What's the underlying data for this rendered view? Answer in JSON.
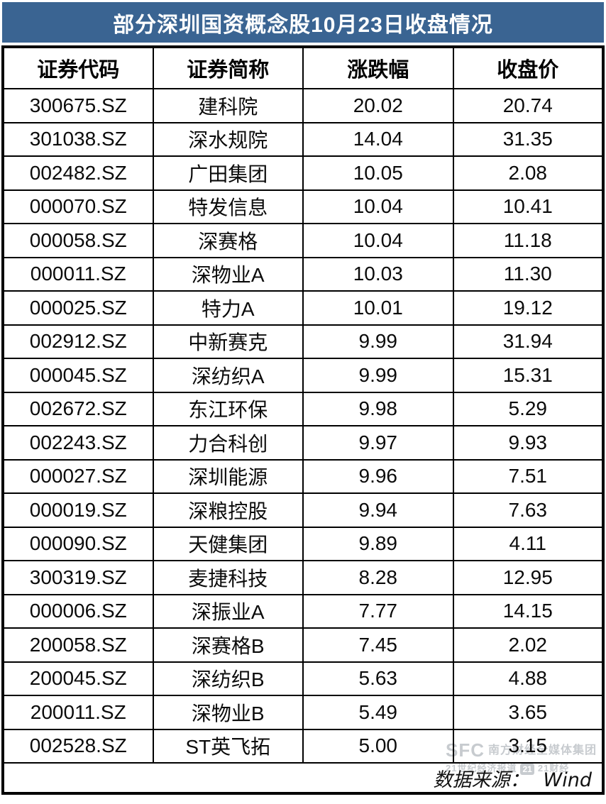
{
  "title": "部分深圳国资概念股10月23日收盘情况",
  "colors": {
    "title_bg": "#3A6492",
    "title_text": "#FFFFFF",
    "table_border": "#000000",
    "body_text": "#0B0B0B",
    "watermark": "#9BA1A8"
  },
  "table": {
    "headers": [
      "证券代码",
      "证券简称",
      "涨跌幅",
      "收盘价"
    ],
    "rows": [
      {
        "code": "300675.SZ",
        "name": "建科院",
        "change": "20.02",
        "close": "20.74"
      },
      {
        "code": "301038.SZ",
        "name": "深水规院",
        "change": "14.04",
        "close": "31.35"
      },
      {
        "code": "002482.SZ",
        "name": "广田集团",
        "change": "10.05",
        "close": "2.08"
      },
      {
        "code": "000070.SZ",
        "name": "特发信息",
        "change": "10.04",
        "close": "10.41"
      },
      {
        "code": "000058.SZ",
        "name": "深赛格",
        "change": "10.04",
        "close": "11.18"
      },
      {
        "code": "000011.SZ",
        "name": "深物业A",
        "change": "10.03",
        "close": "11.30"
      },
      {
        "code": "000025.SZ",
        "name": "特力A",
        "change": "10.01",
        "close": "19.12"
      },
      {
        "code": "002912.SZ",
        "name": "中新赛克",
        "change": "9.99",
        "close": "31.94"
      },
      {
        "code": "000045.SZ",
        "name": "深纺织A",
        "change": "9.99",
        "close": "15.31"
      },
      {
        "code": "002672.SZ",
        "name": "东江环保",
        "change": "9.98",
        "close": "5.29"
      },
      {
        "code": "002243.SZ",
        "name": "力合科创",
        "change": "9.97",
        "close": "9.93"
      },
      {
        "code": "000027.SZ",
        "name": "深圳能源",
        "change": "9.96",
        "close": "7.51"
      },
      {
        "code": "000019.SZ",
        "name": "深粮控股",
        "change": "9.94",
        "close": "7.63"
      },
      {
        "code": "000090.SZ",
        "name": "天健集团",
        "change": "9.89",
        "close": "4.11"
      },
      {
        "code": "300319.SZ",
        "name": "麦捷科技",
        "change": "8.28",
        "close": "12.95"
      },
      {
        "code": "000006.SZ",
        "name": "深振业A",
        "change": "7.77",
        "close": "14.15"
      },
      {
        "code": "200058.SZ",
        "name": "深赛格B",
        "change": "7.45",
        "close": "2.02"
      },
      {
        "code": "200045.SZ",
        "name": "深纺织B",
        "change": "5.63",
        "close": "4.88"
      },
      {
        "code": "200011.SZ",
        "name": "深物业B",
        "change": "5.49",
        "close": "3.65"
      },
      {
        "code": "002528.SZ",
        "name": "ST英飞拓",
        "change": "5.00",
        "close": "3.15"
      }
    ]
  },
  "footer": {
    "source_label": "数据来源：",
    "source_value": "Wind"
  },
  "watermark": {
    "sfc": "SFC",
    "org": "南方财经全媒体集团",
    "paper": "21世纪经济报道",
    "badge": "21",
    "app": "21财经"
  },
  "chart_data": {
    "type": "table",
    "title": "部分深圳国资概念股10月23日收盘情况",
    "columns": [
      "证券代码",
      "证券简称",
      "涨跌幅",
      "收盘价"
    ],
    "rows": [
      [
        "300675.SZ",
        "建科院",
        20.02,
        20.74
      ],
      [
        "301038.SZ",
        "深水规院",
        14.04,
        31.35
      ],
      [
        "002482.SZ",
        "广田集团",
        10.05,
        2.08
      ],
      [
        "000070.SZ",
        "特发信息",
        10.04,
        10.41
      ],
      [
        "000058.SZ",
        "深赛格",
        10.04,
        11.18
      ],
      [
        "000011.SZ",
        "深物业A",
        10.03,
        11.3
      ],
      [
        "000025.SZ",
        "特力A",
        10.01,
        19.12
      ],
      [
        "002912.SZ",
        "中新赛克",
        9.99,
        31.94
      ],
      [
        "000045.SZ",
        "深纺织A",
        9.99,
        15.31
      ],
      [
        "002672.SZ",
        "东江环保",
        9.98,
        5.29
      ],
      [
        "002243.SZ",
        "力合科创",
        9.97,
        9.93
      ],
      [
        "000027.SZ",
        "深圳能源",
        9.96,
        7.51
      ],
      [
        "000019.SZ",
        "深粮控股",
        9.94,
        7.63
      ],
      [
        "000090.SZ",
        "天健集团",
        9.89,
        4.11
      ],
      [
        "300319.SZ",
        "麦捷科技",
        8.28,
        12.95
      ],
      [
        "000006.SZ",
        "深振业A",
        7.77,
        14.15
      ],
      [
        "200058.SZ",
        "深赛格B",
        7.45,
        2.02
      ],
      [
        "200045.SZ",
        "深纺织B",
        5.63,
        4.88
      ],
      [
        "200011.SZ",
        "深物业B",
        5.49,
        3.65
      ],
      [
        "002528.SZ",
        "ST英飞拓",
        5.0,
        3.15
      ]
    ],
    "source": "Wind"
  }
}
